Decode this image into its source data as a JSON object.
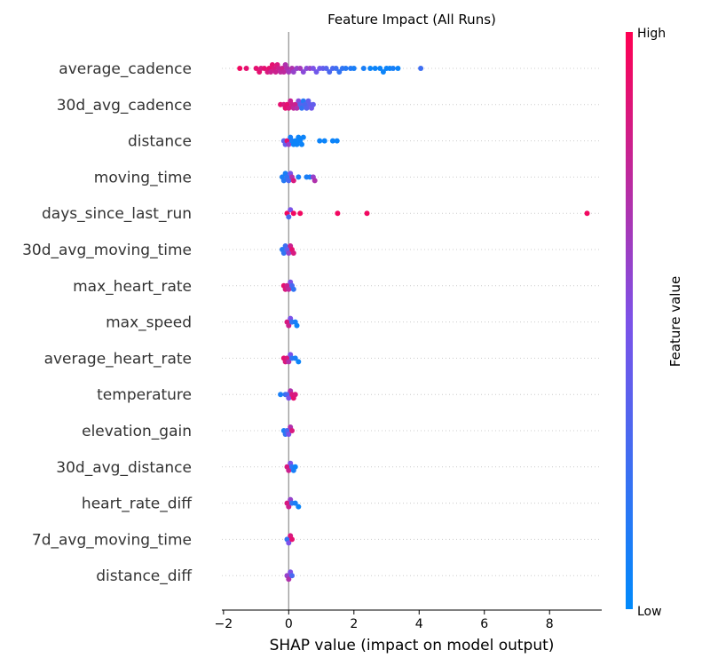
{
  "chart_data": {
    "type": "scatter",
    "subtype": "shap-beeswarm",
    "title": "Feature Impact (All Runs)",
    "xlabel": "SHAP value (impact on model output)",
    "xlim": [
      -2.05,
      9.6
    ],
    "x_ticks": [
      -2,
      0,
      2,
      4,
      6,
      8
    ],
    "x_tick_labels": [
      "−2",
      "0",
      "2",
      "4",
      "6",
      "8"
    ],
    "zero_line": true,
    "row_grid": "dotted",
    "colorbar": {
      "title": "Feature value",
      "high_label": "High",
      "low_label": "Low",
      "low_color": "#008afb",
      "high_color": "#ff0052",
      "placement": "right"
    },
    "features": [
      {
        "name": "average_cadence",
        "points": [
          {
            "x": -1.5,
            "v": 0.95
          },
          {
            "x": -1.3,
            "v": 0.9
          },
          {
            "x": -1.0,
            "v": 0.9
          },
          {
            "x": -0.9,
            "v": 0.9
          },
          {
            "x": -0.85,
            "v": 0.85
          },
          {
            "x": -0.75,
            "v": 0.9
          },
          {
            "x": -0.65,
            "v": 0.85
          },
          {
            "x": -0.6,
            "v": 0.9
          },
          {
            "x": -0.55,
            "v": 0.8
          },
          {
            "x": -0.5,
            "v": 0.9
          },
          {
            "x": -0.45,
            "v": 0.85
          },
          {
            "x": -0.4,
            "v": 0.8
          },
          {
            "x": -0.35,
            "v": 0.85
          },
          {
            "x": -0.3,
            "v": 0.8
          },
          {
            "x": -0.25,
            "v": 0.75
          },
          {
            "x": -0.2,
            "v": 0.8
          },
          {
            "x": -0.15,
            "v": 0.75
          },
          {
            "x": -0.1,
            "v": 0.7
          },
          {
            "x": -0.05,
            "v": 0.7
          },
          {
            "x": 0.0,
            "v": 0.65
          },
          {
            "x": 0.1,
            "v": 0.7
          },
          {
            "x": 0.15,
            "v": 0.6
          },
          {
            "x": 0.25,
            "v": 0.6
          },
          {
            "x": 0.35,
            "v": 0.65
          },
          {
            "x": 0.45,
            "v": 0.55
          },
          {
            "x": 0.55,
            "v": 0.55
          },
          {
            "x": 0.65,
            "v": 0.6
          },
          {
            "x": 0.75,
            "v": 0.5
          },
          {
            "x": 0.85,
            "v": 0.45
          },
          {
            "x": 0.95,
            "v": 0.45
          },
          {
            "x": 1.05,
            "v": 0.4
          },
          {
            "x": 1.15,
            "v": 0.35
          },
          {
            "x": 1.25,
            "v": 0.3
          },
          {
            "x": 1.35,
            "v": 0.3
          },
          {
            "x": 1.45,
            "v": 0.25
          },
          {
            "x": 1.55,
            "v": 0.2
          },
          {
            "x": 1.65,
            "v": 0.2
          },
          {
            "x": 1.75,
            "v": 0.15
          },
          {
            "x": 1.9,
            "v": 0.15
          },
          {
            "x": 2.0,
            "v": 0.1
          },
          {
            "x": 2.3,
            "v": 0.1
          },
          {
            "x": 2.5,
            "v": 0.05
          },
          {
            "x": 2.65,
            "v": 0.05
          },
          {
            "x": 2.8,
            "v": 0.05
          },
          {
            "x": 2.9,
            "v": 0.05
          },
          {
            "x": 3.0,
            "v": 0.05
          },
          {
            "x": 3.1,
            "v": 0.05
          },
          {
            "x": 3.2,
            "v": 0.1
          },
          {
            "x": 3.35,
            "v": 0.05
          },
          {
            "x": 4.05,
            "v": 0.25
          }
        ]
      },
      {
        "name": "30d_avg_cadence",
        "points": [
          {
            "x": -0.25,
            "v": 0.9
          },
          {
            "x": -0.15,
            "v": 0.85
          },
          {
            "x": -0.1,
            "v": 0.9
          },
          {
            "x": -0.05,
            "v": 0.9
          },
          {
            "x": 0.0,
            "v": 0.85
          },
          {
            "x": 0.05,
            "v": 0.8
          },
          {
            "x": 0.1,
            "v": 0.8
          },
          {
            "x": 0.15,
            "v": 0.75
          },
          {
            "x": 0.2,
            "v": 0.8
          },
          {
            "x": 0.25,
            "v": 0.7
          },
          {
            "x": 0.3,
            "v": 0.55
          },
          {
            "x": 0.35,
            "v": 0.35
          },
          {
            "x": 0.4,
            "v": 0.2
          },
          {
            "x": 0.45,
            "v": 0.15
          },
          {
            "x": 0.5,
            "v": 0.3
          },
          {
            "x": 0.55,
            "v": 0.35
          },
          {
            "x": 0.6,
            "v": 0.4
          },
          {
            "x": 0.65,
            "v": 0.4
          },
          {
            "x": 0.7,
            "v": 0.45
          },
          {
            "x": 0.75,
            "v": 0.4
          }
        ]
      },
      {
        "name": "distance",
        "points": [
          {
            "x": -0.15,
            "v": 0.35
          },
          {
            "x": -0.1,
            "v": 0.4
          },
          {
            "x": -0.05,
            "v": 0.9
          },
          {
            "x": 0.0,
            "v": 0.6
          },
          {
            "x": 0.05,
            "v": 0.1
          },
          {
            "x": 0.1,
            "v": 0.1
          },
          {
            "x": 0.15,
            "v": 0.05
          },
          {
            "x": 0.2,
            "v": 0.05
          },
          {
            "x": 0.25,
            "v": 0.05
          },
          {
            "x": 0.3,
            "v": 0.05
          },
          {
            "x": 0.35,
            "v": 0.05
          },
          {
            "x": 0.4,
            "v": 0.05
          },
          {
            "x": 0.45,
            "v": 0.05
          },
          {
            "x": 0.95,
            "v": 0.05
          },
          {
            "x": 1.1,
            "v": 0.05
          },
          {
            "x": 1.35,
            "v": 0.05
          },
          {
            "x": 1.48,
            "v": 0.05
          }
        ]
      },
      {
        "name": "moving_time",
        "points": [
          {
            "x": -0.2,
            "v": 0.1
          },
          {
            "x": -0.15,
            "v": 0.15
          },
          {
            "x": -0.1,
            "v": 0.1
          },
          {
            "x": -0.05,
            "v": 0.2
          },
          {
            "x": 0.0,
            "v": 0.3
          },
          {
            "x": 0.05,
            "v": 0.5
          },
          {
            "x": 0.1,
            "v": 0.7
          },
          {
            "x": 0.15,
            "v": 0.85
          },
          {
            "x": 0.3,
            "v": 0.1
          },
          {
            "x": 0.55,
            "v": 0.1
          },
          {
            "x": 0.65,
            "v": 0.1
          },
          {
            "x": 0.75,
            "v": 0.6
          },
          {
            "x": 0.8,
            "v": 0.7
          }
        ]
      },
      {
        "name": "days_since_last_run",
        "points": [
          {
            "x": -0.05,
            "v": 0.95
          },
          {
            "x": 0.0,
            "v": 0.3
          },
          {
            "x": 0.05,
            "v": 0.5
          },
          {
            "x": 0.15,
            "v": 0.95
          },
          {
            "x": 0.35,
            "v": 0.95
          },
          {
            "x": 1.5,
            "v": 0.95
          },
          {
            "x": 2.4,
            "v": 0.95
          },
          {
            "x": 9.15,
            "v": 0.95
          }
        ]
      },
      {
        "name": "30d_avg_moving_time",
        "points": [
          {
            "x": -0.2,
            "v": 0.15
          },
          {
            "x": -0.15,
            "v": 0.2
          },
          {
            "x": -0.1,
            "v": 0.25
          },
          {
            "x": -0.05,
            "v": 0.4
          },
          {
            "x": 0.0,
            "v": 0.6
          },
          {
            "x": 0.05,
            "v": 0.8
          },
          {
            "x": 0.1,
            "v": 0.9
          },
          {
            "x": 0.15,
            "v": 0.85
          }
        ]
      },
      {
        "name": "max_heart_rate",
        "points": [
          {
            "x": -0.15,
            "v": 0.9
          },
          {
            "x": -0.1,
            "v": 0.85
          },
          {
            "x": -0.05,
            "v": 0.8
          },
          {
            "x": 0.0,
            "v": 0.75
          },
          {
            "x": 0.05,
            "v": 0.5
          },
          {
            "x": 0.1,
            "v": 0.3
          },
          {
            "x": 0.15,
            "v": 0.2
          }
        ]
      },
      {
        "name": "max_speed",
        "points": [
          {
            "x": -0.05,
            "v": 0.85
          },
          {
            "x": 0.0,
            "v": 0.8
          },
          {
            "x": 0.05,
            "v": 0.5
          },
          {
            "x": 0.1,
            "v": 0.2
          },
          {
            "x": 0.2,
            "v": 0.1
          },
          {
            "x": 0.25,
            "v": 0.05
          }
        ]
      },
      {
        "name": "average_heart_rate",
        "points": [
          {
            "x": -0.15,
            "v": 0.9
          },
          {
            "x": -0.1,
            "v": 0.85
          },
          {
            "x": -0.05,
            "v": 0.85
          },
          {
            "x": 0.0,
            "v": 0.7
          },
          {
            "x": 0.05,
            "v": 0.5
          },
          {
            "x": 0.1,
            "v": 0.2
          },
          {
            "x": 0.2,
            "v": 0.1
          },
          {
            "x": 0.3,
            "v": 0.05
          }
        ]
      },
      {
        "name": "temperature",
        "points": [
          {
            "x": -0.25,
            "v": 0.1
          },
          {
            "x": -0.1,
            "v": 0.2
          },
          {
            "x": -0.05,
            "v": 0.3
          },
          {
            "x": 0.0,
            "v": 0.5
          },
          {
            "x": 0.05,
            "v": 0.7
          },
          {
            "x": 0.1,
            "v": 0.85
          },
          {
            "x": 0.15,
            "v": 0.9
          },
          {
            "x": 0.2,
            "v": 0.85
          }
        ]
      },
      {
        "name": "elevation_gain",
        "points": [
          {
            "x": -0.15,
            "v": 0.1
          },
          {
            "x": -0.1,
            "v": 0.2
          },
          {
            "x": -0.05,
            "v": 0.3
          },
          {
            "x": 0.0,
            "v": 0.5
          },
          {
            "x": 0.05,
            "v": 0.7
          },
          {
            "x": 0.1,
            "v": 0.85
          }
        ]
      },
      {
        "name": "30d_avg_distance",
        "points": [
          {
            "x": -0.05,
            "v": 0.85
          },
          {
            "x": 0.0,
            "v": 0.8
          },
          {
            "x": 0.05,
            "v": 0.5
          },
          {
            "x": 0.1,
            "v": 0.2
          },
          {
            "x": 0.15,
            "v": 0.1
          },
          {
            "x": 0.2,
            "v": 0.05
          }
        ]
      },
      {
        "name": "heart_rate_diff",
        "points": [
          {
            "x": -0.05,
            "v": 0.85
          },
          {
            "x": 0.0,
            "v": 0.8
          },
          {
            "x": 0.05,
            "v": 0.6
          },
          {
            "x": 0.1,
            "v": 0.2
          },
          {
            "x": 0.2,
            "v": 0.1
          },
          {
            "x": 0.3,
            "v": 0.05
          }
        ]
      },
      {
        "name": "7d_avg_moving_time",
        "points": [
          {
            "x": -0.05,
            "v": 0.2
          },
          {
            "x": 0.0,
            "v": 0.5
          },
          {
            "x": 0.05,
            "v": 0.85
          },
          {
            "x": 0.1,
            "v": 0.9
          }
        ]
      },
      {
        "name": "distance_diff",
        "points": [
          {
            "x": -0.05,
            "v": 0.6
          },
          {
            "x": 0.0,
            "v": 0.7
          },
          {
            "x": 0.05,
            "v": 0.5
          },
          {
            "x": 0.1,
            "v": 0.3
          }
        ]
      }
    ]
  }
}
